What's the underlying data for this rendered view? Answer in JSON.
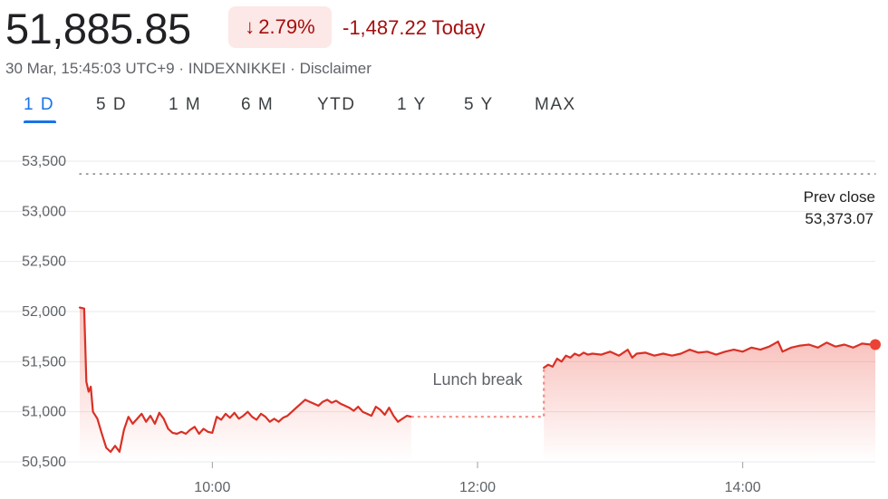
{
  "quote": {
    "price": "51,885.85",
    "change_pct": "2.79%",
    "change_direction": "down",
    "change_abs": "-1,487.22 Today",
    "timestamp": "30 Mar, 15:45:03 UTC+9",
    "exchange": "INDEXNIKKEI",
    "disclaimer": "Disclaimer",
    "separator": " · "
  },
  "tabs": [
    {
      "label": "1 D",
      "active": true
    },
    {
      "label": "5 D",
      "active": false
    },
    {
      "label": "1 M",
      "active": false
    },
    {
      "label": "6 M",
      "active": false
    },
    {
      "label": "YTD",
      "active": false
    },
    {
      "label": "1 Y",
      "active": false
    },
    {
      "label": "5 Y",
      "active": false
    },
    {
      "label": "MAX",
      "active": false
    }
  ],
  "colors": {
    "accent": "#1a73e8",
    "down": "#a50e0e",
    "down_bg": "#fce8e6",
    "line": "#d93025",
    "grid": "#e8eaed",
    "axis_text": "#5f6368"
  },
  "chart_data": {
    "type": "line",
    "title": "",
    "xlabel": "",
    "ylabel": "",
    "ylim": [
      50500,
      53500
    ],
    "xlim": [
      "09:00",
      "15:00"
    ],
    "y_ticks": [
      50500,
      51000,
      51500,
      52000,
      52500,
      53000,
      53500
    ],
    "y_tick_labels": [
      "50,500",
      "51,000",
      "51,500",
      "52,000",
      "52,500",
      "53,000",
      "53,500"
    ],
    "x_ticks": [
      "10:00",
      "12:00",
      "14:00"
    ],
    "prev_close": 53373.07,
    "prev_close_label": "Prev close",
    "prev_close_value_label": "53,373.07",
    "lunch_break_label": "Lunch break",
    "grid": true,
    "series": [
      {
        "session": "morning",
        "points": [
          [
            "09:00",
            52040
          ],
          [
            "09:02",
            52030
          ],
          [
            "09:03",
            51300
          ],
          [
            "09:04",
            51200
          ],
          [
            "09:05",
            51250
          ],
          [
            "09:06",
            51000
          ],
          [
            "09:08",
            50930
          ],
          [
            "09:10",
            50780
          ],
          [
            "09:12",
            50640
          ],
          [
            "09:14",
            50600
          ],
          [
            "09:16",
            50660
          ],
          [
            "09:18",
            50600
          ],
          [
            "09:20",
            50820
          ],
          [
            "09:22",
            50950
          ],
          [
            "09:24",
            50880
          ],
          [
            "09:26",
            50930
          ],
          [
            "09:28",
            50980
          ],
          [
            "09:30",
            50900
          ],
          [
            "09:32",
            50960
          ],
          [
            "09:34",
            50880
          ],
          [
            "09:36",
            50990
          ],
          [
            "09:38",
            50930
          ],
          [
            "09:40",
            50830
          ],
          [
            "09:42",
            50790
          ],
          [
            "09:44",
            50780
          ],
          [
            "09:46",
            50800
          ],
          [
            "09:48",
            50780
          ],
          [
            "09:50",
            50820
          ],
          [
            "09:52",
            50850
          ],
          [
            "09:54",
            50780
          ],
          [
            "09:56",
            50830
          ],
          [
            "09:58",
            50800
          ],
          [
            "10:00",
            50790
          ],
          [
            "10:02",
            50950
          ],
          [
            "10:04",
            50920
          ],
          [
            "10:06",
            50980
          ],
          [
            "10:08",
            50940
          ],
          [
            "10:10",
            50990
          ],
          [
            "10:12",
            50930
          ],
          [
            "10:14",
            50960
          ],
          [
            "10:16",
            51000
          ],
          [
            "10:18",
            50950
          ],
          [
            "10:20",
            50920
          ],
          [
            "10:22",
            50980
          ],
          [
            "10:24",
            50950
          ],
          [
            "10:26",
            50900
          ],
          [
            "10:28",
            50930
          ],
          [
            "10:30",
            50900
          ],
          [
            "10:32",
            50940
          ],
          [
            "10:34",
            50960
          ],
          [
            "10:36",
            51000
          ],
          [
            "10:38",
            51040
          ],
          [
            "10:40",
            51080
          ],
          [
            "10:42",
            51120
          ],
          [
            "10:44",
            51100
          ],
          [
            "10:46",
            51080
          ],
          [
            "10:48",
            51060
          ],
          [
            "10:50",
            51100
          ],
          [
            "10:52",
            51120
          ],
          [
            "10:54",
            51090
          ],
          [
            "10:56",
            51110
          ],
          [
            "10:58",
            51080
          ],
          [
            "11:00",
            51060
          ],
          [
            "11:02",
            51040
          ],
          [
            "11:04",
            51010
          ],
          [
            "11:06",
            51050
          ],
          [
            "11:08",
            51000
          ],
          [
            "11:10",
            50980
          ],
          [
            "11:12",
            50960
          ],
          [
            "11:14",
            51050
          ],
          [
            "11:16",
            51020
          ],
          [
            "11:18",
            50970
          ],
          [
            "11:20",
            51040
          ],
          [
            "11:22",
            50960
          ],
          [
            "11:24",
            50900
          ],
          [
            "11:26",
            50930
          ],
          [
            "11:28",
            50960
          ],
          [
            "11:30",
            50950
          ]
        ]
      },
      {
        "session": "afternoon",
        "points": [
          [
            "12:30",
            51440
          ],
          [
            "12:32",
            51470
          ],
          [
            "12:34",
            51450
          ],
          [
            "12:36",
            51530
          ],
          [
            "12:38",
            51500
          ],
          [
            "12:40",
            51560
          ],
          [
            "12:42",
            51540
          ],
          [
            "12:44",
            51580
          ],
          [
            "12:46",
            51560
          ],
          [
            "12:48",
            51590
          ],
          [
            "12:50",
            51570
          ],
          [
            "12:52",
            51580
          ],
          [
            "12:56",
            51570
          ],
          [
            "13:00",
            51600
          ],
          [
            "13:04",
            51560
          ],
          [
            "13:08",
            51620
          ],
          [
            "13:10",
            51540
          ],
          [
            "13:12",
            51580
          ],
          [
            "13:16",
            51590
          ],
          [
            "13:20",
            51560
          ],
          [
            "13:24",
            51580
          ],
          [
            "13:28",
            51560
          ],
          [
            "13:32",
            51580
          ],
          [
            "13:36",
            51620
          ],
          [
            "13:40",
            51590
          ],
          [
            "13:44",
            51600
          ],
          [
            "13:48",
            51570
          ],
          [
            "13:52",
            51600
          ],
          [
            "13:56",
            51620
          ],
          [
            "14:00",
            51600
          ],
          [
            "14:04",
            51640
          ],
          [
            "14:08",
            51620
          ],
          [
            "14:12",
            51650
          ],
          [
            "14:16",
            51700
          ],
          [
            "14:18",
            51600
          ],
          [
            "14:22",
            51640
          ],
          [
            "14:26",
            51660
          ],
          [
            "14:30",
            51670
          ],
          [
            "14:34",
            51640
          ],
          [
            "14:38",
            51690
          ],
          [
            "14:42",
            51650
          ],
          [
            "14:46",
            51670
          ],
          [
            "14:50",
            51640
          ],
          [
            "14:54",
            51680
          ],
          [
            "14:58",
            51670
          ],
          [
            "15:00",
            51670
          ]
        ]
      }
    ]
  }
}
